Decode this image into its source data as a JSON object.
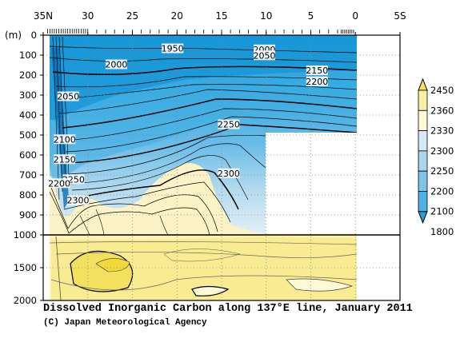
{
  "chart_data": {
    "type": "contour",
    "title": "Dissolved Inorganic Carbon along 137°E line, January 2011",
    "credit": "(C) Japan Meteorological Agency",
    "x_axis": {
      "ticks": [
        {
          "lat": 35,
          "label": "35N"
        },
        {
          "lat": 30,
          "label": "30"
        },
        {
          "lat": 25,
          "label": "25"
        },
        {
          "lat": 20,
          "label": "20"
        },
        {
          "lat": 15,
          "label": "15"
        },
        {
          "lat": 10,
          "label": "10"
        },
        {
          "lat": 5,
          "label": "5"
        },
        {
          "lat": 0,
          "label": "0"
        },
        {
          "lat": -5,
          "label": "5S"
        }
      ],
      "range": [
        35,
        -5
      ]
    },
    "y_axis": {
      "unit_label": "(m)",
      "upper_ticks": [
        0,
        100,
        200,
        300,
        400,
        500,
        600,
        700,
        800,
        900,
        1000
      ],
      "lower_ticks": [
        1500,
        2000
      ],
      "upper_range": [
        0,
        1000
      ],
      "lower_range": [
        1000,
        2000
      ]
    },
    "colorbar": {
      "levels": [
        1800,
        2100,
        2200,
        2250,
        2300,
        2330,
        2360,
        2450
      ],
      "colors": [
        "#1ea1dd",
        "#4fb2e4",
        "#7ec4ea",
        "#abd6ef",
        "#d6e9f4",
        "#fdfbd8",
        "#f9f0a8",
        "#f3e25f"
      ]
    },
    "contour_labels": [
      {
        "value": "1950",
        "lat": 20.5,
        "depth": 70
      },
      {
        "value": "2000",
        "lat": 10.2,
        "depth": 75
      },
      {
        "value": "2050",
        "lat": 10.2,
        "depth": 105
      },
      {
        "value": "2000",
        "lat": 26.8,
        "depth": 150
      },
      {
        "value": "2150",
        "lat": 4.3,
        "depth": 180
      },
      {
        "value": "2200",
        "lat": 4.3,
        "depth": 235
      },
      {
        "value": "2050",
        "lat": 32.2,
        "depth": 310
      },
      {
        "value": "2250",
        "lat": 14.2,
        "depth": 450
      },
      {
        "value": "2100",
        "lat": 32.6,
        "depth": 525
      },
      {
        "value": "2150",
        "lat": 32.6,
        "depth": 625
      },
      {
        "value": "2250",
        "lat": 31.6,
        "depth": 725
      },
      {
        "value": "2200",
        "lat": 33.2,
        "depth": 745
      },
      {
        "value": "2300",
        "lat": 14.2,
        "depth": 695
      },
      {
        "value": "2300",
        "lat": 31.1,
        "depth": 830
      }
    ],
    "grid": true,
    "no_data_region": {
      "lat": [
        10,
        0
      ],
      "depth": [
        500,
        1000
      ]
    }
  }
}
